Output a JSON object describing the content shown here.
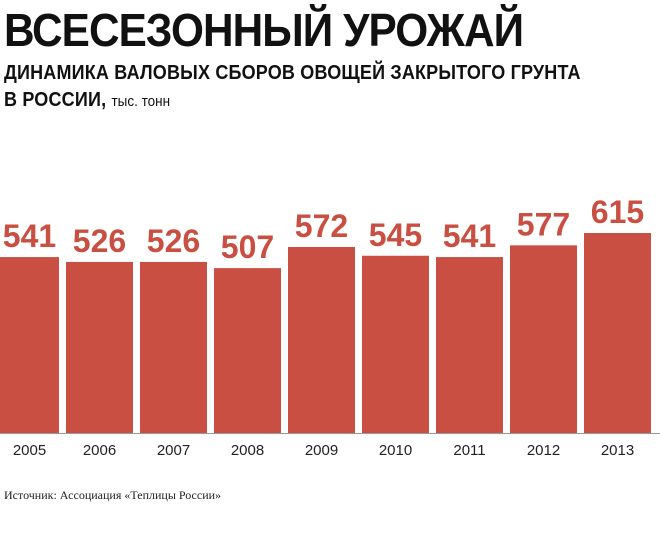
{
  "header": {
    "title": "ВСЕСЕЗОННЫЙ УРОЖАЙ",
    "subtitle_line1": "ДИНАМИКА ВАЛОВЫХ СБОРОВ ОВОЩЕЙ ЗАКРЫТОГО ГРУНТА",
    "subtitle_line2": "В РОССИИ, ",
    "unit": "тыс. тонн"
  },
  "footer": {
    "source": "Источник: Ассоциация «Теплицы России»"
  },
  "colors": {
    "bar": "#c94f42",
    "label": "#c94f42",
    "axis": "#999999"
  },
  "chart_data": {
    "type": "bar",
    "title": "ВСЕСЕЗОННЫЙ УРОЖАЙ",
    "subtitle": "ДИНАМИКА ВАЛОВЫХ СБОРОВ ОВОЩЕЙ ЗАКРЫТОГО ГРУНТА В РОССИИ, тыс. тонн",
    "categories": [
      "2005",
      "2006",
      "2007",
      "2008",
      "2009",
      "2010",
      "2011",
      "2012",
      "2013"
    ],
    "values": [
      541,
      526,
      526,
      507,
      572,
      545,
      541,
      577,
      615
    ],
    "data_labels": [
      "541",
      "526",
      "526",
      "507",
      "572",
      "545",
      "541",
      "577",
      "615"
    ],
    "xlabel": "",
    "ylabel": "",
    "ylim": [
      0,
      615
    ],
    "grid": false,
    "legend": "none"
  }
}
